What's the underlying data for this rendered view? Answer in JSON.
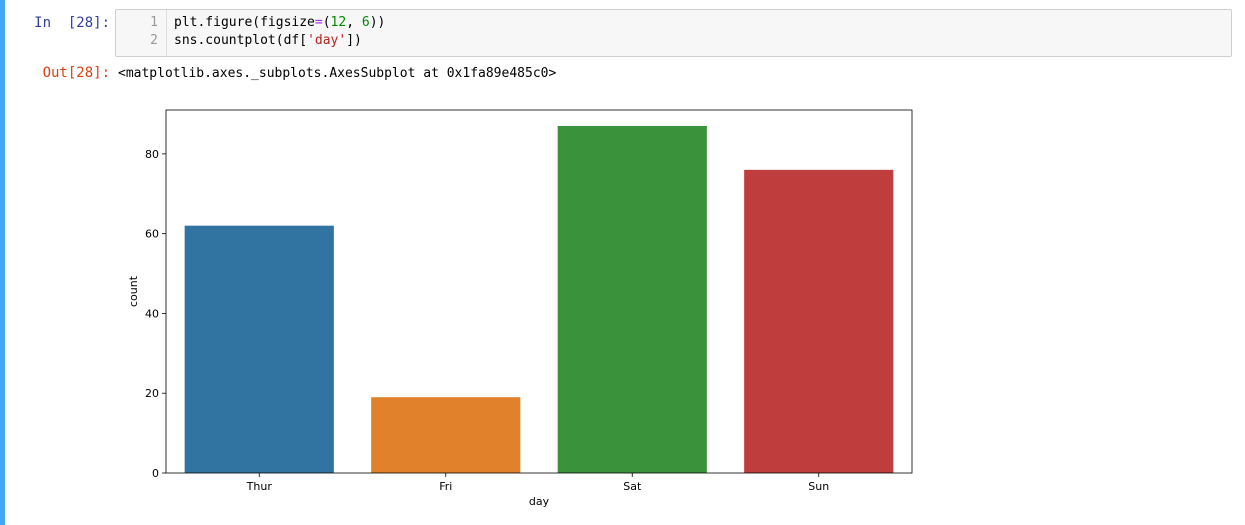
{
  "input_cell": {
    "prompt": "In  [28]:",
    "line_numbers": [
      "1",
      "2"
    ],
    "line1": {
      "a": "plt.figure(figsize",
      "b": "=",
      "c": "(",
      "d": "12",
      "e": ", ",
      "f": "6",
      "g": "))"
    },
    "line2": {
      "a": "sns.countplot(df[",
      "b": "'day'",
      "c": "])"
    }
  },
  "output_cell": {
    "prompt": "Out[28]:",
    "text": "<matplotlib.axes._subplots.AxesSubplot at 0x1fa89e485c0>"
  },
  "colors": {
    "cell_bar": "#42a5f5",
    "prompt_in": "#303f9f",
    "prompt_out": "#d84315"
  },
  "chart_data": {
    "type": "bar",
    "categories": [
      "Thur",
      "Fri",
      "Sat",
      "Sun"
    ],
    "values": [
      62,
      19,
      87,
      76
    ],
    "colors": [
      "#3274a1",
      "#e1812c",
      "#3a923a",
      "#c03d3e"
    ],
    "title": "",
    "xlabel": "day",
    "ylabel": "count",
    "ylim": [
      0,
      91
    ],
    "yticks": [
      0,
      20,
      40,
      60,
      80
    ],
    "grid": false
  }
}
